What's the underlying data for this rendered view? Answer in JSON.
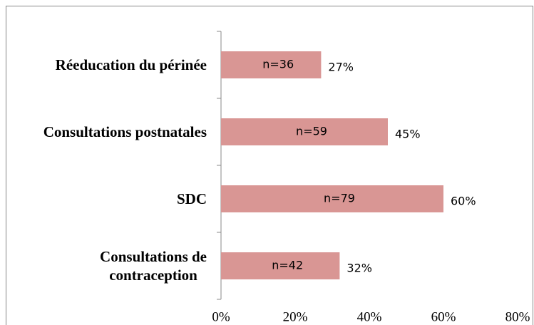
{
  "chart_data": {
    "type": "hbar",
    "categories": [
      "Réeducation du périnée",
      "Consultations postnatales",
      "SDC",
      "Consultations de\ncontraception"
    ],
    "values": [
      27,
      45,
      60,
      32
    ],
    "value_labels": [
      "27%",
      "45%",
      "60%",
      "32%"
    ],
    "annotations": [
      "n=36",
      "n=59",
      "n=79",
      "n=42"
    ],
    "color": "#d99694",
    "xlim": [
      0,
      80
    ],
    "xticks": [
      {
        "value": 0,
        "label": "0%"
      },
      {
        "value": 20,
        "label": "20%"
      },
      {
        "value": 40,
        "label": "40%"
      },
      {
        "value": 60,
        "label": "60%"
      },
      {
        "value": 80,
        "label": "80%"
      }
    ]
  }
}
